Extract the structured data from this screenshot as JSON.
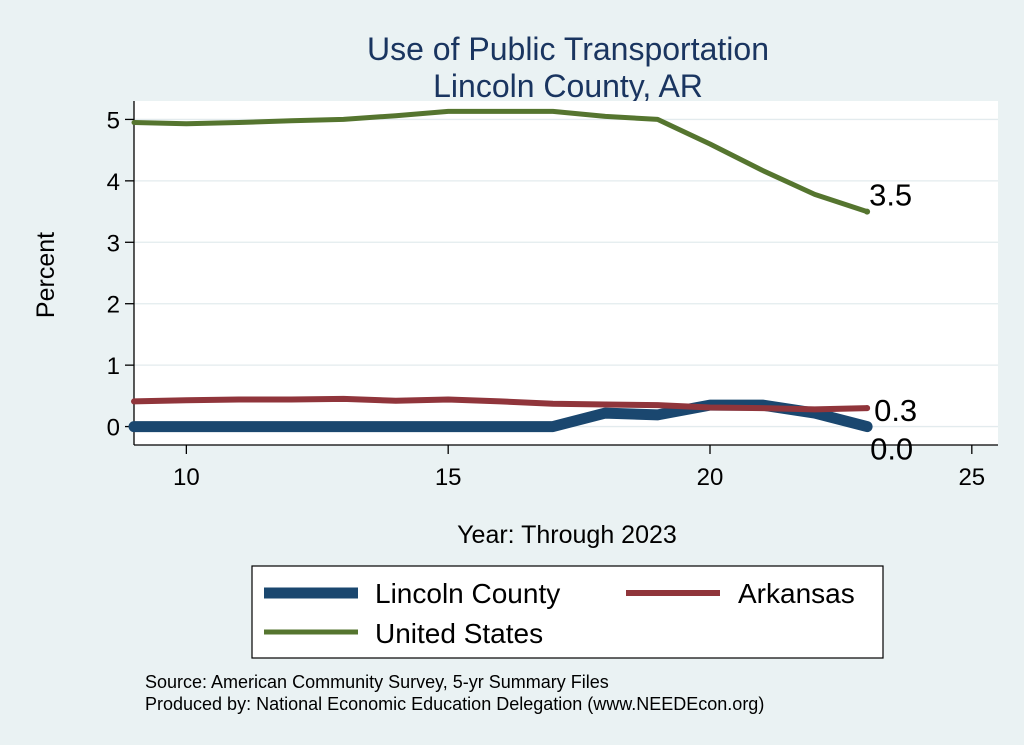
{
  "chart_data": {
    "type": "line",
    "title": "Use of Public Transportation",
    "subtitle": "Lincoln County, AR",
    "xlabel": "Year: Through 2023",
    "ylabel": "Percent",
    "xlim": [
      9,
      25.5
    ],
    "ylim": [
      -0.3,
      5.3
    ],
    "xticks": [
      10,
      15,
      20,
      25
    ],
    "yticks": [
      0,
      1,
      2,
      3,
      4,
      5
    ],
    "grid": true,
    "legend_position": "bottom",
    "x": [
      9,
      10,
      11,
      12,
      13,
      14,
      15,
      16,
      17,
      18,
      19,
      20,
      21,
      22,
      23
    ],
    "series": [
      {
        "name": "Lincoln County",
        "color": "#1a476f",
        "values": [
          0,
          0,
          0,
          0,
          0,
          0,
          0,
          0,
          0,
          0.22,
          0.19,
          0.35,
          0.35,
          0.22,
          0.0
        ],
        "end_label": "0.0"
      },
      {
        "name": "Arkansas",
        "color": "#90353b",
        "values": [
          0.41,
          0.43,
          0.44,
          0.44,
          0.45,
          0.42,
          0.44,
          0.41,
          0.37,
          0.36,
          0.35,
          0.31,
          0.3,
          0.28,
          0.3
        ],
        "end_label": "0.3"
      },
      {
        "name": "United States",
        "color": "#55752f",
        "values": [
          4.95,
          4.93,
          4.95,
          4.98,
          5.0,
          5.06,
          5.13,
          5.13,
          5.13,
          5.05,
          5.0,
          4.6,
          4.17,
          3.78,
          3.5
        ],
        "end_label": "3.5"
      }
    ]
  },
  "footer": {
    "source": "Source: American Community Survey, 5-yr Summary Files",
    "producer": "Produced by: National Economic Education Delegation (www.NEEDEcon.org)"
  }
}
